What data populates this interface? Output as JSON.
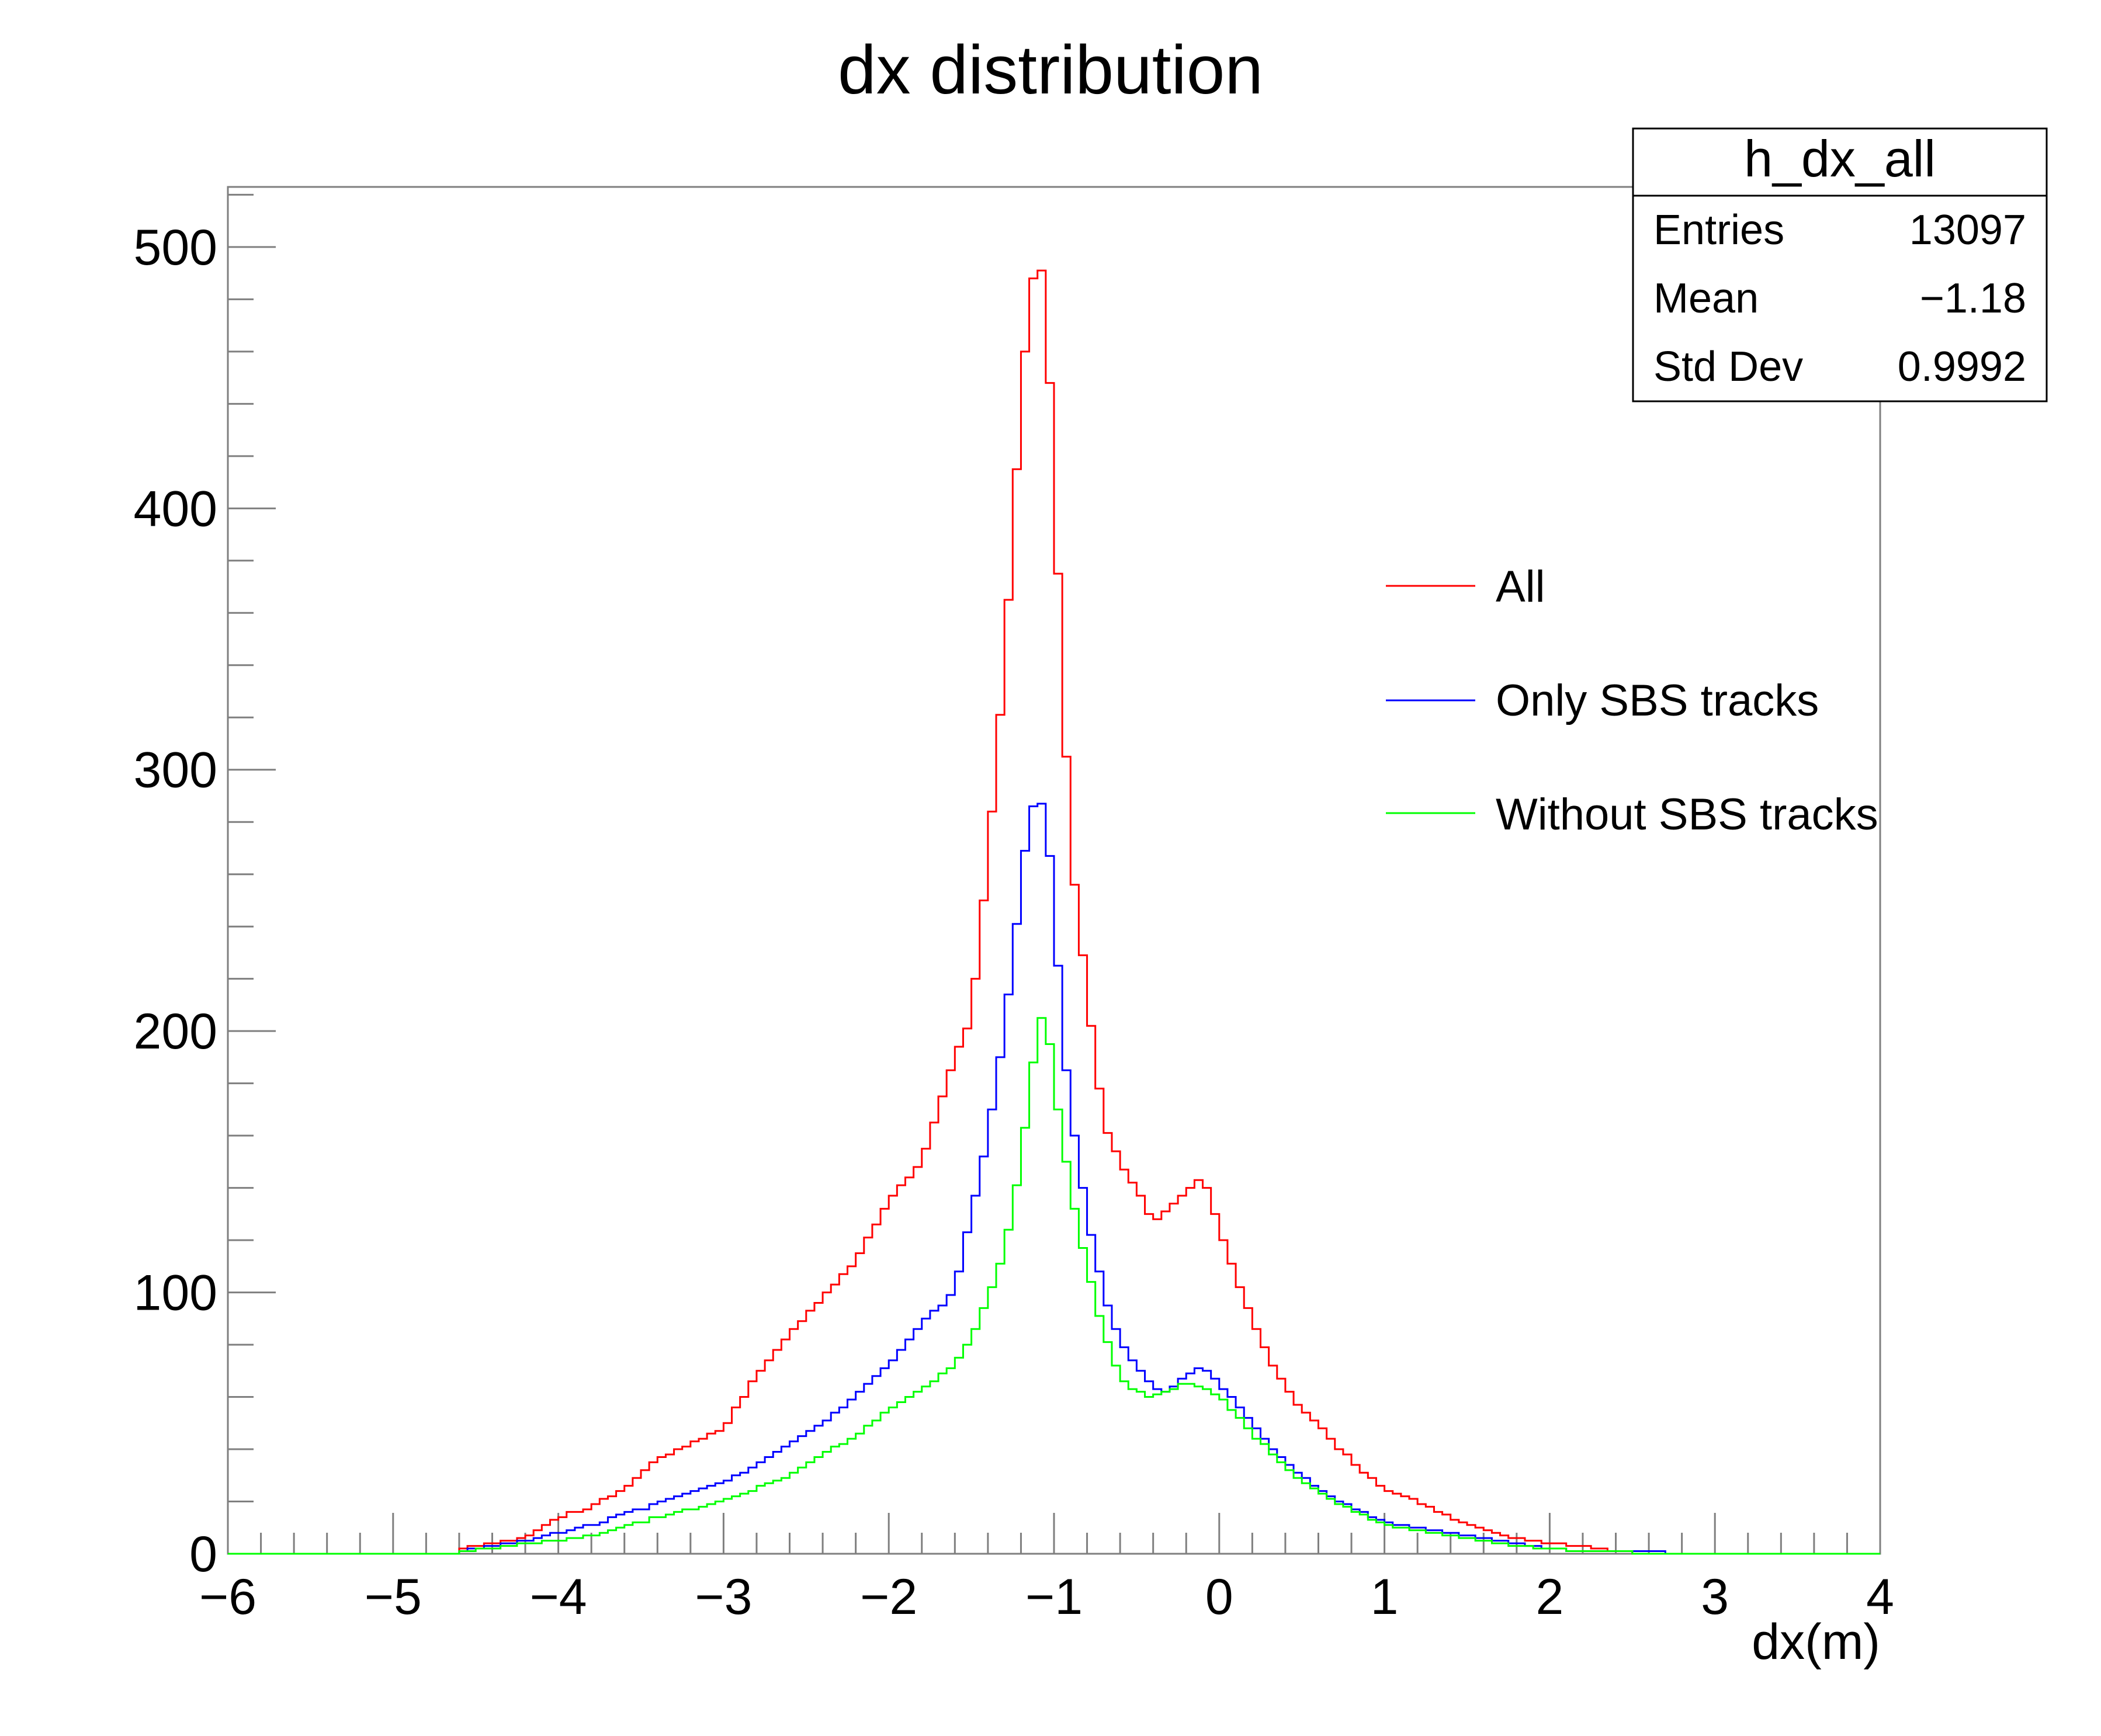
{
  "chart_data": {
    "type": "histogram",
    "title": "dx distribution",
    "xlabel": "dx(m)",
    "ylabel": "",
    "xlim": [
      -6,
      4
    ],
    "ylim": [
      0,
      523
    ],
    "x_ticks": [
      -6,
      -5,
      -4,
      -3,
      -2,
      -1,
      0,
      1,
      2,
      3,
      4
    ],
    "x_tick_labels": [
      "−6",
      "−5",
      "−4",
      "−3",
      "−2",
      "−1",
      "0",
      "1",
      "2",
      "3",
      "4"
    ],
    "y_ticks": [
      0,
      100,
      200,
      300,
      400,
      500
    ],
    "y_tick_labels": [
      "0",
      "100",
      "200",
      "300",
      "400",
      "500"
    ],
    "bins": {
      "min": -6,
      "max": 4,
      "count": 200
    },
    "stats_box": {
      "name": "h_dx_all",
      "rows": [
        {
          "label": "Entries",
          "value": "13097"
        },
        {
          "label": "Mean",
          "value": "−1.18"
        },
        {
          "label": "Std Dev",
          "value": "0.9992"
        }
      ]
    },
    "legend_position": "right",
    "series": [
      {
        "name": "All",
        "color": "#ff0000",
        "points": [
          [
            -4.6,
            2
          ],
          [
            -4.4,
            4
          ],
          [
            -4.2,
            6
          ],
          [
            -4.0,
            14
          ],
          [
            -3.8,
            18
          ],
          [
            -3.6,
            25
          ],
          [
            -3.4,
            36
          ],
          [
            -3.2,
            42
          ],
          [
            -3.0,
            48
          ],
          [
            -2.8,
            68
          ],
          [
            -2.6,
            84
          ],
          [
            -2.4,
            98
          ],
          [
            -2.2,
            112
          ],
          [
            -2.0,
            135
          ],
          [
            -1.8,
            150
          ],
          [
            -1.6,
            190
          ],
          [
            -1.5,
            205
          ],
          [
            -1.4,
            265
          ],
          [
            -1.3,
            340
          ],
          [
            -1.2,
            440
          ],
          [
            -1.15,
            480
          ],
          [
            -1.1,
            495
          ],
          [
            -1.05,
            487
          ],
          [
            -1.0,
            410
          ],
          [
            -0.95,
            340
          ],
          [
            -0.9,
            270
          ],
          [
            -0.8,
            215
          ],
          [
            -0.7,
            165
          ],
          [
            -0.6,
            150
          ],
          [
            -0.5,
            140
          ],
          [
            -0.4,
            127
          ],
          [
            -0.3,
            132
          ],
          [
            -0.2,
            138
          ],
          [
            -0.1,
            145
          ],
          [
            0.0,
            125
          ],
          [
            0.1,
            106
          ],
          [
            0.2,
            90
          ],
          [
            0.3,
            75
          ],
          [
            0.4,
            64
          ],
          [
            0.5,
            55
          ],
          [
            0.6,
            50
          ],
          [
            0.7,
            42
          ],
          [
            0.8,
            36
          ],
          [
            0.9,
            30
          ],
          [
            1.0,
            25
          ],
          [
            1.2,
            20
          ],
          [
            1.4,
            14
          ],
          [
            1.6,
            9
          ],
          [
            1.8,
            6
          ],
          [
            2.0,
            4
          ],
          [
            2.2,
            3
          ],
          [
            2.4,
            1
          ],
          [
            2.6,
            0
          ]
        ]
      },
      {
        "name": "Only SBS tracks",
        "color": "#0000ff",
        "points": [
          [
            -4.6,
            1
          ],
          [
            -4.4,
            3
          ],
          [
            -4.2,
            5
          ],
          [
            -4.0,
            8
          ],
          [
            -3.8,
            11
          ],
          [
            -3.6,
            15
          ],
          [
            -3.4,
            19
          ],
          [
            -3.2,
            23
          ],
          [
            -3.0,
            27
          ],
          [
            -2.8,
            34
          ],
          [
            -2.6,
            42
          ],
          [
            -2.4,
            50
          ],
          [
            -2.2,
            60
          ],
          [
            -2.0,
            72
          ],
          [
            -1.8,
            88
          ],
          [
            -1.6,
            100
          ],
          [
            -1.5,
            130
          ],
          [
            -1.4,
            160
          ],
          [
            -1.3,
            200
          ],
          [
            -1.2,
            255
          ],
          [
            -1.15,
            283
          ],
          [
            -1.1,
            288
          ],
          [
            -1.05,
            285
          ],
          [
            -1.0,
            250
          ],
          [
            -0.95,
            200
          ],
          [
            -0.9,
            170
          ],
          [
            -0.8,
            130
          ],
          [
            -0.7,
            100
          ],
          [
            -0.6,
            82
          ],
          [
            -0.5,
            72
          ],
          [
            -0.4,
            64
          ],
          [
            -0.3,
            62
          ],
          [
            -0.2,
            68
          ],
          [
            -0.1,
            72
          ],
          [
            0.0,
            65
          ],
          [
            0.1,
            58
          ],
          [
            0.2,
            50
          ],
          [
            0.3,
            42
          ],
          [
            0.4,
            36
          ],
          [
            0.5,
            30
          ],
          [
            0.6,
            25
          ],
          [
            0.7,
            21
          ],
          [
            0.8,
            18
          ],
          [
            0.9,
            15
          ],
          [
            1.0,
            12
          ],
          [
            1.2,
            10
          ],
          [
            1.4,
            8
          ],
          [
            1.6,
            6
          ],
          [
            1.8,
            4
          ],
          [
            2.0,
            2
          ],
          [
            2.2,
            1
          ],
          [
            2.4,
            1
          ],
          [
            2.6,
            1
          ],
          [
            2.8,
            0
          ]
        ]
      },
      {
        "name": "Without SBS tracks",
        "color": "#00ff00",
        "points": [
          [
            -4.6,
            1
          ],
          [
            -4.4,
            2
          ],
          [
            -4.2,
            4
          ],
          [
            -4.0,
            5
          ],
          [
            -3.8,
            7
          ],
          [
            -3.6,
            10
          ],
          [
            -3.4,
            14
          ],
          [
            -3.2,
            17
          ],
          [
            -3.0,
            20
          ],
          [
            -2.8,
            25
          ],
          [
            -2.6,
            30
          ],
          [
            -2.4,
            38
          ],
          [
            -2.2,
            45
          ],
          [
            -2.0,
            55
          ],
          [
            -1.8,
            63
          ],
          [
            -1.6,
            72
          ],
          [
            -1.5,
            82
          ],
          [
            -1.4,
            98
          ],
          [
            -1.3,
            115
          ],
          [
            -1.2,
            150
          ],
          [
            -1.15,
            175
          ],
          [
            -1.1,
            200
          ],
          [
            -1.05,
            210
          ],
          [
            -1.0,
            180
          ],
          [
            -0.95,
            160
          ],
          [
            -0.9,
            140
          ],
          [
            -0.8,
            110
          ],
          [
            -0.7,
            85
          ],
          [
            -0.6,
            68
          ],
          [
            -0.5,
            62
          ],
          [
            -0.4,
            60
          ],
          [
            -0.3,
            62
          ],
          [
            -0.2,
            66
          ],
          [
            -0.1,
            64
          ],
          [
            0.0,
            60
          ],
          [
            0.1,
            54
          ],
          [
            0.2,
            46
          ],
          [
            0.3,
            40
          ],
          [
            0.4,
            34
          ],
          [
            0.5,
            28
          ],
          [
            0.6,
            24
          ],
          [
            0.7,
            20
          ],
          [
            0.8,
            17
          ],
          [
            0.9,
            14
          ],
          [
            1.0,
            11
          ],
          [
            1.2,
            9
          ],
          [
            1.4,
            7
          ],
          [
            1.6,
            5
          ],
          [
            1.8,
            3
          ],
          [
            2.0,
            2
          ],
          [
            2.2,
            1
          ],
          [
            2.4,
            1
          ],
          [
            2.6,
            0
          ]
        ]
      }
    ]
  }
}
